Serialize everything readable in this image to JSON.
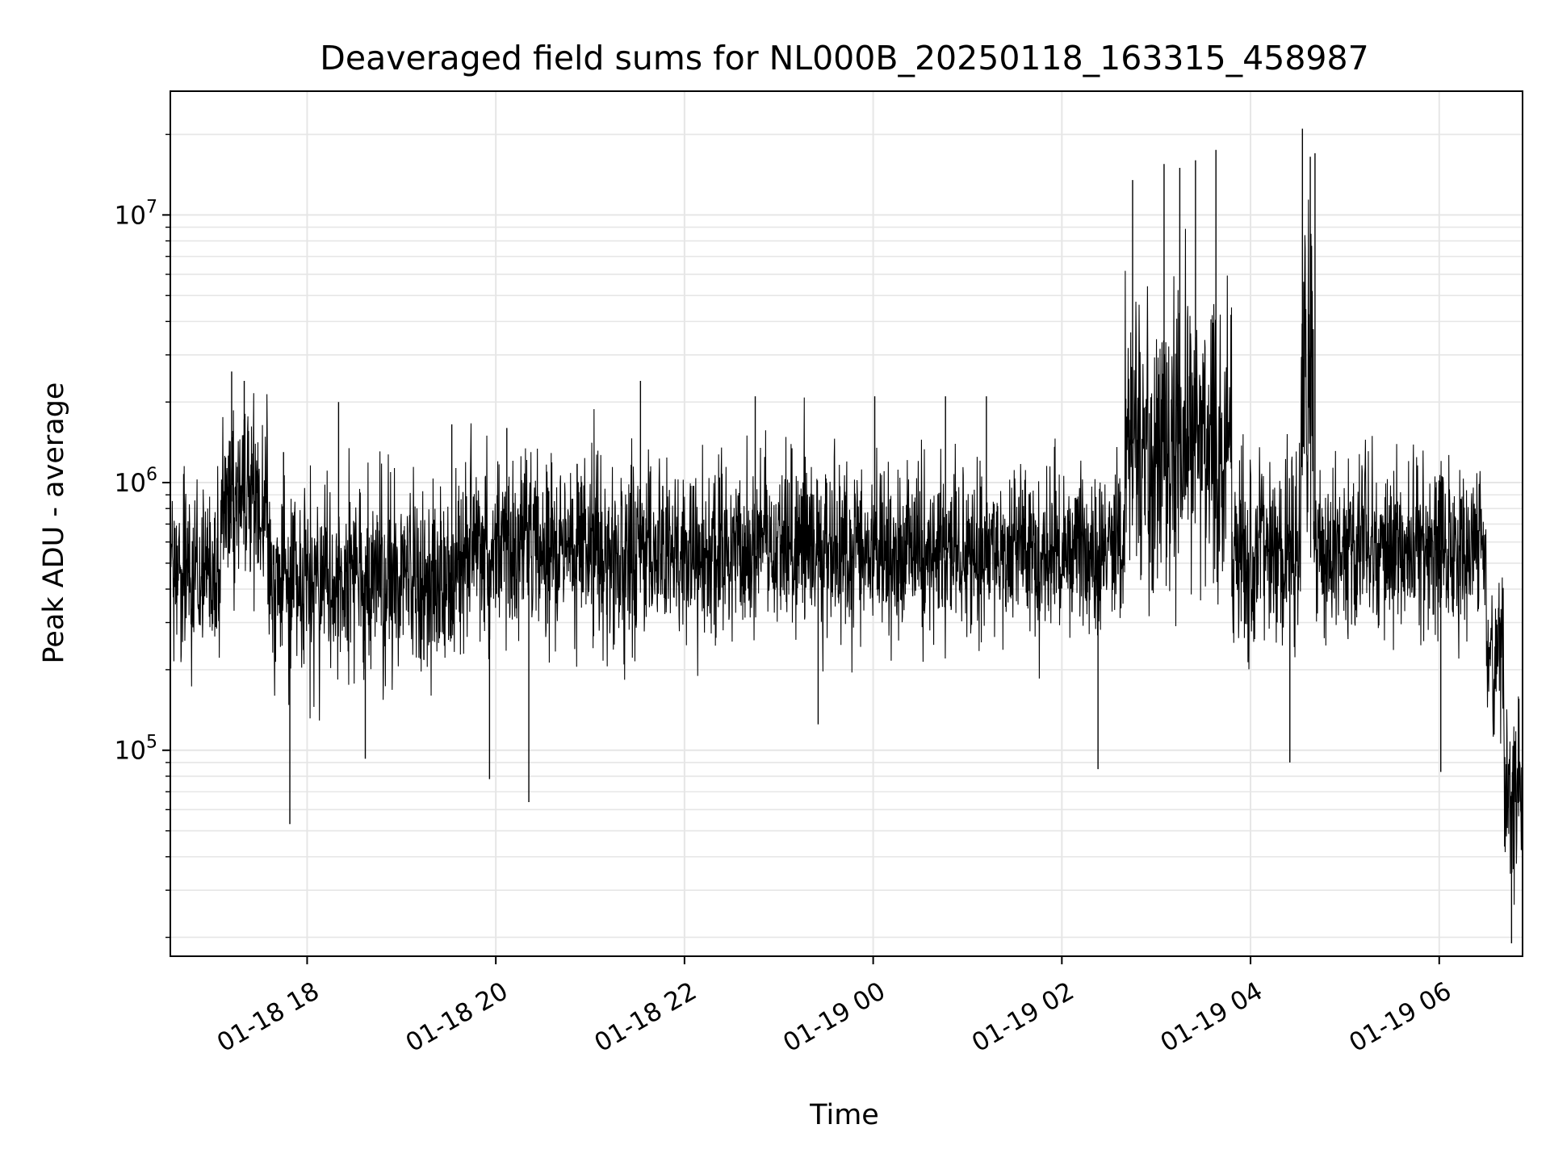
{
  "chart_data": {
    "type": "line",
    "title": "Deaveraged field sums for NL000B_20250118_163315_458987",
    "xlabel": "Time",
    "ylabel": "Peak ADU - average",
    "yscale": "log",
    "ylim": [
      17000,
      29000000
    ],
    "xlim": [
      "2025-01-18 16:33",
      "2025-01-19 06:53"
    ],
    "grid": true,
    "line_color": "#000000",
    "grid_color": "#e6e6e6",
    "xticks": [
      "2025-01-18 18:00",
      "2025-01-18 20:00",
      "2025-01-18 22:00",
      "2025-01-19 00:00",
      "2025-01-19 02:00",
      "2025-01-19 04:00",
      "2025-01-19 06:00"
    ],
    "xtick_labels": [
      "01-18 18",
      "01-18 20",
      "01-18 22",
      "01-19 00",
      "01-19 02",
      "01-19 04",
      "01-19 06"
    ],
    "ytick_labels": [
      {
        "value": 100000,
        "base": "10",
        "exp": "5"
      },
      {
        "value": 1000000,
        "base": "10",
        "exp": "6"
      },
      {
        "value": 10000000,
        "base": "10",
        "exp": "7"
      }
    ],
    "series": [
      {
        "segments": [
          {
            "start": "2025-01-18 16:33",
            "end": "2025-01-18 17:05",
            "median": 480000,
            "spread": 0.45
          },
          {
            "start": "2025-01-18 17:05",
            "end": "2025-01-18 17:35",
            "median": 850000,
            "spread": 0.42
          },
          {
            "start": "2025-01-18 17:35",
            "end": "2025-01-18 19:40",
            "median": 430000,
            "spread": 0.45
          },
          {
            "start": "2025-01-18 19:40",
            "end": "2025-01-18 21:45",
            "median": 560000,
            "spread": 0.45
          },
          {
            "start": "2025-01-18 21:45",
            "end": "2025-01-19 02:40",
            "median": 560000,
            "spread": 0.42
          },
          {
            "start": "2025-01-19 02:40",
            "end": "2025-01-19 03:48",
            "median": 1400000,
            "spread": 0.7
          },
          {
            "start": "2025-01-19 03:48",
            "end": "2025-01-19 04:32",
            "median": 550000,
            "spread": 0.45
          },
          {
            "start": "2025-01-19 04:32",
            "end": "2025-01-19 04:40",
            "median": 2000000,
            "spread": 0.75
          },
          {
            "start": "2025-01-19 04:40",
            "end": "2025-01-19 06:30",
            "median": 560000,
            "spread": 0.42
          },
          {
            "start": "2025-01-19 06:30",
            "end": "2025-01-19 06:41",
            "median": 220000,
            "spread": 0.4
          },
          {
            "start": "2025-01-19 06:41",
            "end": "2025-01-19 06:53",
            "median": 70000,
            "spread": 0.45
          }
        ],
        "peaks": [
          {
            "x": "2025-01-18 17:12",
            "y": 2600000
          },
          {
            "x": "2025-01-18 17:20",
            "y": 2400000
          },
          {
            "x": "2025-01-18 17:45",
            "y": 1300000
          },
          {
            "x": "2025-01-18 17:49",
            "y": 53000
          },
          {
            "x": "2025-01-18 18:20",
            "y": 2000000
          },
          {
            "x": "2025-01-18 18:37",
            "y": 93000
          },
          {
            "x": "2025-01-18 19:32",
            "y": 1650000
          },
          {
            "x": "2025-01-18 19:56",
            "y": 78000
          },
          {
            "x": "2025-01-18 20:07",
            "y": 1600000
          },
          {
            "x": "2025-01-18 20:21",
            "y": 64000
          },
          {
            "x": "2025-01-18 21:32",
            "y": 2400000
          },
          {
            "x": "2025-01-18 22:45",
            "y": 2100000
          },
          {
            "x": "2025-01-18 23:25",
            "y": 125000
          },
          {
            "x": "2025-01-19 00:01",
            "y": 2100000
          },
          {
            "x": "2025-01-19 00:46",
            "y": 2100000
          },
          {
            "x": "2025-01-19 01:12",
            "y": 2100000
          },
          {
            "x": "2025-01-19 02:23",
            "y": 85000
          },
          {
            "x": "2025-01-19 02:45",
            "y": 13500000
          },
          {
            "x": "2025-01-19 03:05",
            "y": 15500000
          },
          {
            "x": "2025-01-19 03:15",
            "y": 15000000
          },
          {
            "x": "2025-01-19 03:25",
            "y": 16000000
          },
          {
            "x": "2025-01-19 03:38",
            "y": 17500000
          },
          {
            "x": "2025-01-19 04:25",
            "y": 90000
          },
          {
            "x": "2025-01-19 04:33",
            "y": 21000000
          },
          {
            "x": "2025-01-19 04:38",
            "y": 16500000
          },
          {
            "x": "2025-01-19 04:41",
            "y": 17000000
          },
          {
            "x": "2025-01-19 06:01",
            "y": 83000
          },
          {
            "x": "2025-01-19 06:46",
            "y": 19000
          }
        ]
      }
    ]
  }
}
